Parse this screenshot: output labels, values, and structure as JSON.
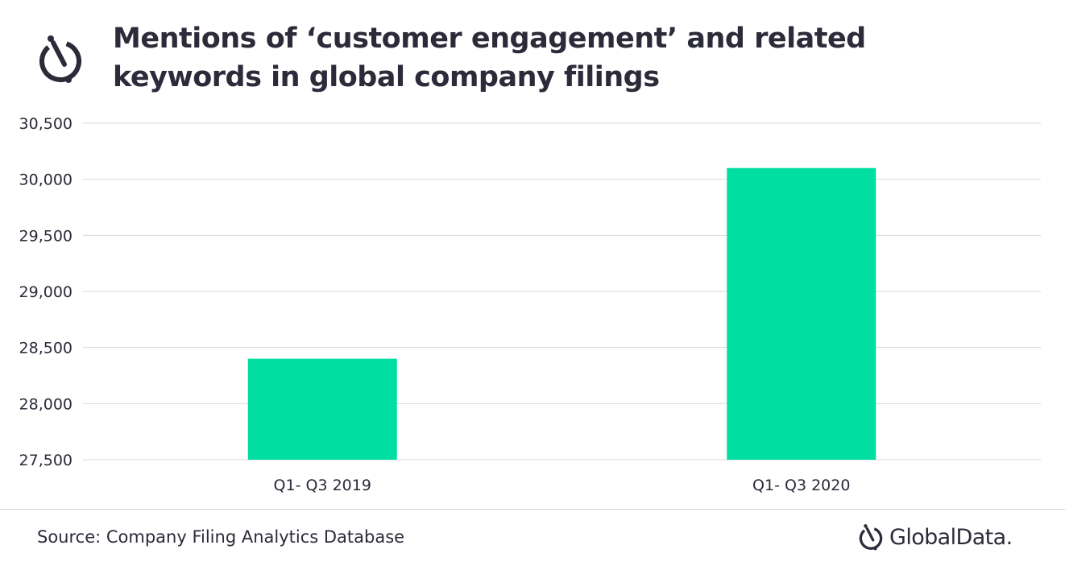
{
  "header": {
    "title": "Mentions of ‘customer engagement’ and related keywords in global company filings"
  },
  "footer": {
    "source": "Source: Company Filing Analytics Database",
    "brand": "GlobalData."
  },
  "colors": {
    "bar": "#00dea1",
    "text": "#2b2b3a",
    "grid": "#d9d9d9"
  },
  "icons": {
    "title_logo": "globaldata-logo-icon",
    "brand_logo": "globaldata-logo-icon"
  },
  "chart_data": {
    "type": "bar",
    "categories": [
      "Q1- Q3 2019",
      "Q1- Q3 2020"
    ],
    "values": [
      28400,
      30100
    ],
    "title": "Mentions of ‘customer engagement’ and related keywords in global company filings",
    "xlabel": "",
    "ylabel": "",
    "ylim": [
      27500,
      30500
    ],
    "yticks": [
      27500,
      28000,
      28500,
      29000,
      29500,
      30000,
      30500
    ],
    "ytick_labels": [
      "27,500",
      "28,000",
      "28,500",
      "29,000",
      "29,500",
      "30,000",
      "30,500"
    ],
    "grid": true,
    "legend": "none"
  }
}
